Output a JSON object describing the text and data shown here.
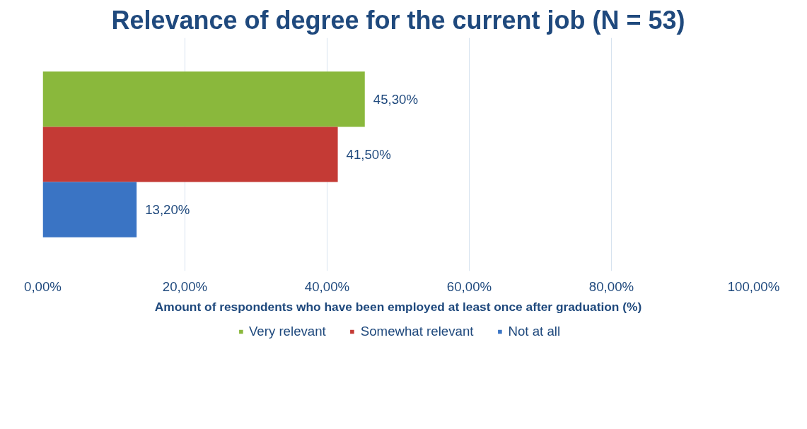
{
  "chart_data": {
    "type": "bar",
    "orientation": "horizontal",
    "title": "Relevance of degree for the current job (N = 53)",
    "xlabel": "Amount of respondents who have been employed at least once after graduation (%)",
    "categories": [
      null
    ],
    "series": [
      {
        "name": "Very relevant",
        "color": "#8ab83c",
        "values": [
          45.3
        ],
        "value_labels": [
          "45,30%"
        ]
      },
      {
        "name": "Somewhat relevant",
        "color": "#c43a35",
        "values": [
          41.5
        ],
        "value_labels": [
          "41,50%"
        ]
      },
      {
        "name": "Not at all",
        "color": "#3a74c4",
        "values": [
          13.2
        ],
        "value_labels": [
          "13,20%"
        ]
      }
    ],
    "xlim": [
      0,
      100
    ],
    "xticks": [
      {
        "value": 0,
        "label": "0,00%"
      },
      {
        "value": 20,
        "label": "20,00%"
      },
      {
        "value": 40,
        "label": "40,00%"
      },
      {
        "value": 60,
        "label": "60,00%"
      },
      {
        "value": 80,
        "label": "80,00%"
      },
      {
        "value": 100,
        "label": "100,00%"
      }
    ],
    "grid": "x",
    "legend": "bottom"
  }
}
